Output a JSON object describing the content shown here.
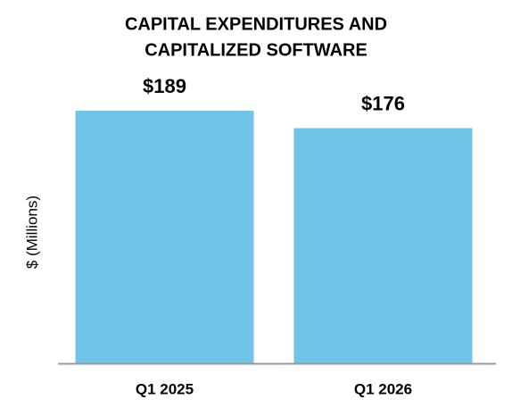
{
  "chart_data": {
    "type": "bar",
    "title": [
      "CAPITAL EXPENDITURES AND",
      "CAPITALIZED SOFTWARE"
    ],
    "y_label": "$ (Millions)",
    "categories": [
      "Q1 2025",
      "Q1 2026"
    ],
    "values": [
      189,
      176
    ],
    "value_labels": [
      "$189",
      "$176"
    ],
    "color": "#70c4e8"
  }
}
